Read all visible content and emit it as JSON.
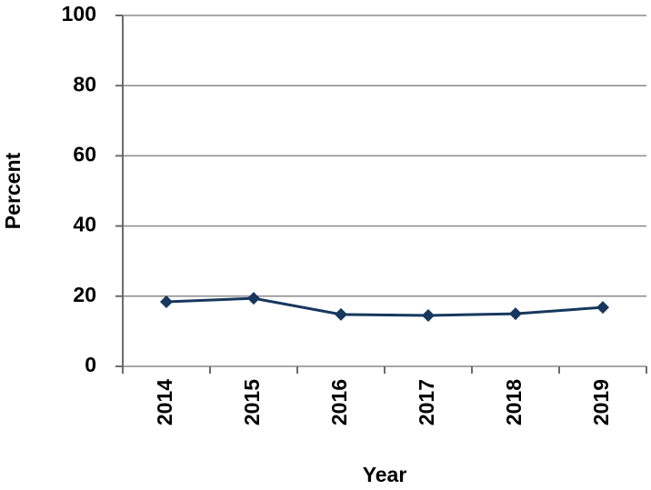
{
  "chart_data": {
    "type": "line",
    "x_label": "Year",
    "y_label": "Percent",
    "categories": [
      "2014",
      "2015",
      "2016",
      "2017",
      "2018",
      "2019"
    ],
    "series": [
      {
        "name": "Percent",
        "color": "#17375e",
        "values": [
          18.4,
          19.4,
          14.8,
          14.5,
          15.0,
          16.8
        ]
      }
    ],
    "ylim": [
      0,
      100
    ],
    "yticks": [
      0,
      20,
      40,
      60,
      80,
      100
    ],
    "grid": true
  }
}
